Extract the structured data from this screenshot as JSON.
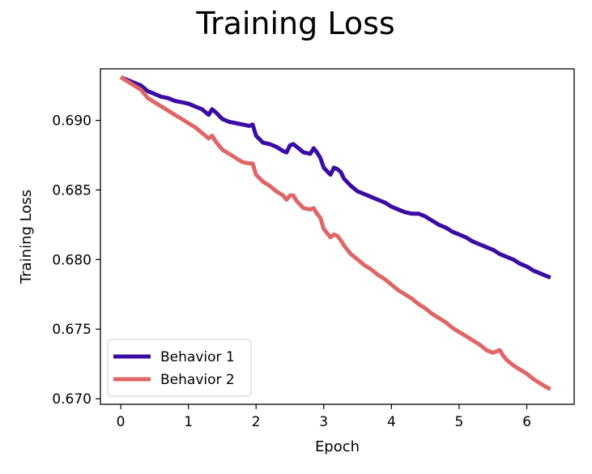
{
  "chart_data": {
    "type": "line",
    "title": "Training Loss",
    "xlabel": "Epoch",
    "ylabel": "Training Loss",
    "xlim": [
      -0.3,
      6.7
    ],
    "ylim": [
      0.6696,
      0.6937
    ],
    "xticks": [
      0,
      1,
      2,
      3,
      4,
      5,
      6
    ],
    "xtick_labels": [
      "0",
      "1",
      "2",
      "3",
      "4",
      "5",
      "6"
    ],
    "yticks": [
      0.67,
      0.675,
      0.68,
      0.685,
      0.69
    ],
    "ytick_labels": [
      "0.670",
      "0.675",
      "0.680",
      "0.685",
      "0.690"
    ],
    "grid": false,
    "legend_position": "lower-left",
    "series": [
      {
        "name": "Behavior 1",
        "color": "#3a0ca3",
        "x": [
          0,
          0.1,
          0.2,
          0.3,
          0.4,
          0.5,
          0.6,
          0.7,
          0.8,
          0.9,
          1.0,
          1.1,
          1.2,
          1.3,
          1.35,
          1.4,
          1.5,
          1.6,
          1.7,
          1.8,
          1.9,
          1.95,
          2.0,
          2.1,
          2.2,
          2.3,
          2.4,
          2.45,
          2.5,
          2.55,
          2.6,
          2.7,
          2.8,
          2.85,
          2.9,
          2.95,
          3.0,
          3.1,
          3.15,
          3.2,
          3.25,
          3.3,
          3.4,
          3.5,
          3.6,
          3.7,
          3.8,
          3.9,
          4.0,
          4.1,
          4.2,
          4.3,
          4.4,
          4.5,
          4.6,
          4.7,
          4.8,
          4.9,
          5.0,
          5.1,
          5.2,
          5.3,
          5.4,
          5.5,
          5.6,
          5.7,
          5.8,
          5.9,
          6.0,
          6.1,
          6.2,
          6.3,
          6.35
        ],
        "values": [
          0.6931,
          0.6929,
          0.6927,
          0.6925,
          0.6921,
          0.6919,
          0.6917,
          0.6916,
          0.6914,
          0.6913,
          0.6912,
          0.691,
          0.6908,
          0.6904,
          0.6908,
          0.6906,
          0.6901,
          0.6899,
          0.6898,
          0.6897,
          0.6896,
          0.6897,
          0.6889,
          0.6884,
          0.6883,
          0.6881,
          0.6878,
          0.6877,
          0.6882,
          0.6883,
          0.6881,
          0.6877,
          0.6876,
          0.688,
          0.6877,
          0.6873,
          0.6866,
          0.6861,
          0.6866,
          0.6865,
          0.6863,
          0.6858,
          0.6853,
          0.6849,
          0.6847,
          0.6845,
          0.6843,
          0.6841,
          0.6838,
          0.6836,
          0.6834,
          0.6833,
          0.6833,
          0.6831,
          0.6828,
          0.6825,
          0.6823,
          0.682,
          0.6818,
          0.6816,
          0.6813,
          0.6811,
          0.6809,
          0.6807,
          0.6804,
          0.6802,
          0.68,
          0.6797,
          0.6795,
          0.6792,
          0.679,
          0.6788,
          0.6787
        ]
      },
      {
        "name": "Behavior 2",
        "color": "#e06666",
        "x": [
          0,
          0.1,
          0.2,
          0.3,
          0.4,
          0.5,
          0.6,
          0.7,
          0.8,
          0.9,
          1.0,
          1.1,
          1.2,
          1.3,
          1.35,
          1.4,
          1.5,
          1.6,
          1.7,
          1.8,
          1.9,
          1.95,
          2.0,
          2.1,
          2.2,
          2.3,
          2.4,
          2.45,
          2.5,
          2.55,
          2.6,
          2.7,
          2.8,
          2.85,
          2.9,
          2.95,
          3.0,
          3.1,
          3.15,
          3.2,
          3.25,
          3.3,
          3.4,
          3.5,
          3.6,
          3.7,
          3.8,
          3.9,
          4.0,
          4.1,
          4.2,
          4.3,
          4.4,
          4.5,
          4.6,
          4.7,
          4.8,
          4.9,
          5.0,
          5.1,
          5.2,
          5.3,
          5.4,
          5.5,
          5.6,
          5.65,
          5.7,
          5.8,
          5.9,
          6.0,
          6.1,
          6.2,
          6.3,
          6.35
        ],
        "values": [
          0.6931,
          0.6928,
          0.6925,
          0.6922,
          0.6916,
          0.6913,
          0.691,
          0.6907,
          0.6904,
          0.6901,
          0.6898,
          0.6895,
          0.6891,
          0.6887,
          0.6889,
          0.6885,
          0.6879,
          0.6876,
          0.6873,
          0.687,
          0.6869,
          0.6869,
          0.6861,
          0.6856,
          0.6853,
          0.6849,
          0.6846,
          0.6843,
          0.6846,
          0.6846,
          0.6842,
          0.6837,
          0.6836,
          0.6837,
          0.6833,
          0.683,
          0.6822,
          0.6816,
          0.6818,
          0.6817,
          0.6814,
          0.681,
          0.6804,
          0.68,
          0.6796,
          0.6793,
          0.6789,
          0.6786,
          0.6782,
          0.6778,
          0.6775,
          0.6772,
          0.6768,
          0.6765,
          0.6761,
          0.6758,
          0.6755,
          0.6751,
          0.6748,
          0.6745,
          0.6742,
          0.6739,
          0.6735,
          0.6733,
          0.6735,
          0.6731,
          0.6728,
          0.6724,
          0.6721,
          0.6718,
          0.6714,
          0.6711,
          0.6708,
          0.6707
        ]
      }
    ]
  }
}
